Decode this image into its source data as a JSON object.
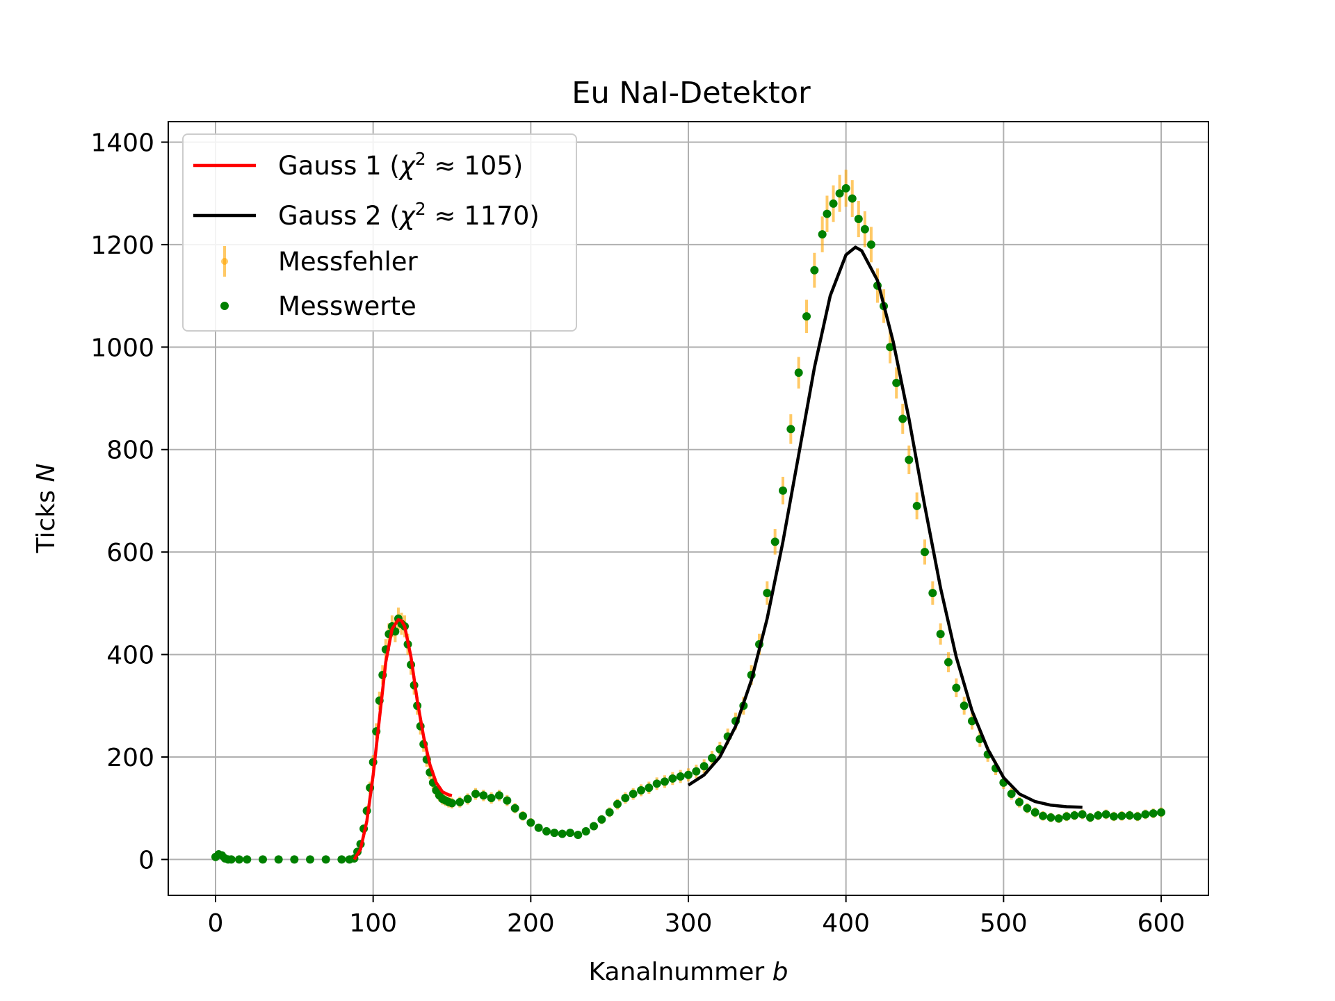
{
  "chart_data": {
    "type": "scatter",
    "title": "Eu NaI-Detektor",
    "xlabel": "Kanalnummer b",
    "xlabel_text": "Kanalnummer ",
    "xlabel_var": "b",
    "ylabel": "Ticks N",
    "ylabel_text": "Ticks ",
    "ylabel_var": "N",
    "xlim": [
      -30,
      630
    ],
    "ylim": [
      -70,
      1440
    ],
    "xticks": [
      0,
      100,
      200,
      300,
      400,
      500,
      600
    ],
    "xtick_labels": [
      "0",
      "100",
      "200",
      "300",
      "400",
      "500",
      "600"
    ],
    "yticks": [
      0,
      200,
      400,
      600,
      800,
      1000,
      1200,
      1400
    ],
    "ytick_labels": [
      "0",
      "200",
      "400",
      "600",
      "800",
      "1000",
      "1200",
      "1400"
    ],
    "grid": true,
    "legend_position": "top-left",
    "legend": [
      {
        "label_prefix": "Gauss 1 (",
        "label_chi": "χ",
        "label_exp": "2",
        "label_suffix": " ≈ 105)",
        "kind": "line",
        "color": "#ff0000"
      },
      {
        "label_prefix": "Gauss 2 (",
        "label_chi": "χ",
        "label_exp": "2",
        "label_suffix": " ≈ 1170)",
        "kind": "line",
        "color": "#000000"
      },
      {
        "label": "Messfehler",
        "kind": "errorbar",
        "color": "#ffa500"
      },
      {
        "label": "Messwerte",
        "kind": "marker",
        "color": "#008000"
      }
    ],
    "series": [
      {
        "name": "Gauss 1",
        "kind": "line",
        "color": "#ff0000",
        "x": [
          88,
          92,
          96,
          100,
          104,
          108,
          112,
          116,
          118,
          120,
          124,
          128,
          132,
          136,
          140,
          144,
          148,
          150
        ],
        "y": [
          0,
          20,
          75,
          165,
          275,
          385,
          450,
          468,
          466,
          455,
          395,
          310,
          240,
          185,
          150,
          132,
          126,
          125
        ]
      },
      {
        "name": "Gauss 2",
        "kind": "line",
        "color": "#000000",
        "x": [
          300,
          310,
          320,
          330,
          340,
          350,
          360,
          370,
          380,
          390,
          400,
          406,
          410,
          420,
          430,
          440,
          450,
          460,
          470,
          480,
          490,
          500,
          510,
          520,
          530,
          540,
          550
        ],
        "y": [
          145,
          165,
          200,
          260,
          350,
          470,
          620,
          790,
          960,
          1100,
          1180,
          1195,
          1188,
          1130,
          1010,
          860,
          690,
          530,
          395,
          290,
          215,
          160,
          128,
          113,
          106,
          103,
          102
        ]
      },
      {
        "name": "Messwerte",
        "kind": "points",
        "color": "#008000",
        "error_color": "#ffa500",
        "x": [
          0,
          2,
          4,
          6,
          8,
          10,
          15,
          20,
          30,
          40,
          50,
          60,
          70,
          80,
          85,
          88,
          90,
          92,
          94,
          96,
          98,
          100,
          102,
          104,
          106,
          108,
          110,
          112,
          114,
          116,
          118,
          120,
          122,
          124,
          126,
          128,
          130,
          132,
          134,
          136,
          138,
          140,
          142,
          144,
          146,
          148,
          150,
          155,
          160,
          165,
          170,
          175,
          180,
          185,
          190,
          195,
          200,
          205,
          210,
          215,
          220,
          225,
          230,
          235,
          240,
          245,
          250,
          255,
          260,
          265,
          270,
          275,
          280,
          285,
          290,
          295,
          300,
          305,
          310,
          315,
          320,
          325,
          330,
          335,
          340,
          345,
          350,
          355,
          360,
          365,
          370,
          375,
          380,
          385,
          388,
          392,
          396,
          400,
          404,
          408,
          412,
          416,
          420,
          424,
          428,
          432,
          436,
          440,
          445,
          450,
          455,
          460,
          465,
          470,
          475,
          480,
          485,
          490,
          495,
          500,
          505,
          510,
          515,
          520,
          525,
          530,
          535,
          540,
          545,
          550,
          555,
          560,
          565,
          570,
          575,
          580,
          585,
          590,
          595,
          600
        ],
        "y": [
          5,
          10,
          8,
          2,
          0,
          0,
          0,
          0,
          0,
          0,
          0,
          0,
          0,
          0,
          0,
          2,
          15,
          30,
          60,
          95,
          140,
          190,
          250,
          310,
          360,
          410,
          440,
          455,
          445,
          470,
          460,
          455,
          420,
          380,
          340,
          300,
          260,
          225,
          195,
          170,
          150,
          135,
          125,
          118,
          115,
          112,
          110,
          112,
          118,
          128,
          125,
          120,
          125,
          115,
          100,
          85,
          72,
          62,
          55,
          52,
          50,
          52,
          48,
          55,
          65,
          78,
          92,
          108,
          120,
          128,
          135,
          140,
          148,
          152,
          158,
          162,
          165,
          172,
          182,
          198,
          215,
          240,
          270,
          300,
          360,
          420,
          520,
          620,
          720,
          840,
          950,
          1060,
          1150,
          1220,
          1260,
          1280,
          1300,
          1310,
          1290,
          1250,
          1230,
          1200,
          1120,
          1080,
          1000,
          930,
          860,
          780,
          690,
          600,
          520,
          440,
          385,
          335,
          300,
          270,
          235,
          205,
          178,
          150,
          128,
          112,
          100,
          92,
          85,
          82,
          80,
          84,
          86,
          88,
          82,
          86,
          88,
          84,
          85,
          86,
          84,
          88,
          90,
          92
        ]
      }
    ]
  }
}
